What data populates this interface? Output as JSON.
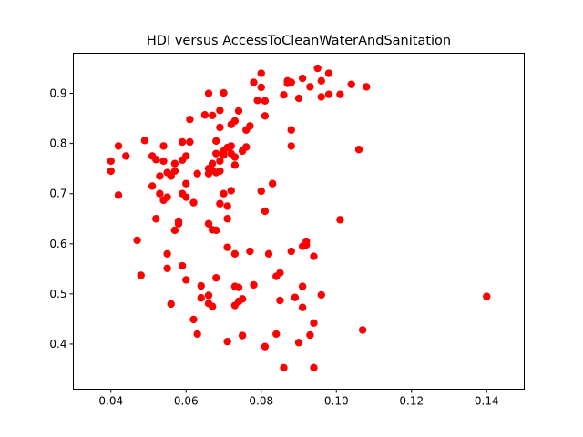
{
  "chart_data": {
    "type": "scatter",
    "title": "HDI versus AccessToCleanWaterAndSanitation",
    "xlabel": "",
    "ylabel": "",
    "xlim": [
      0.03,
      0.15
    ],
    "ylim": [
      0.31,
      0.98
    ],
    "xticks": [
      0.04,
      0.06,
      0.08,
      0.1,
      0.12,
      0.14
    ],
    "xtick_labels": [
      "0.04",
      "0.06",
      "0.08",
      "0.10",
      "0.12",
      "0.14"
    ],
    "yticks": [
      0.4,
      0.5,
      0.6,
      0.7,
      0.8,
      0.9
    ],
    "ytick_labels": [
      "0.4",
      "0.5",
      "0.6",
      "0.7",
      "0.8",
      "0.9"
    ],
    "grid": false,
    "legend": "none",
    "marker_color": "#ff0000",
    "points": [
      [
        0.04,
        0.765
      ],
      [
        0.04,
        0.745
      ],
      [
        0.042,
        0.795
      ],
      [
        0.042,
        0.697
      ],
      [
        0.044,
        0.775
      ],
      [
        0.047,
        0.607
      ],
      [
        0.048,
        0.537
      ],
      [
        0.049,
        0.806
      ],
      [
        0.051,
        0.715
      ],
      [
        0.051,
        0.775
      ],
      [
        0.052,
        0.65
      ],
      [
        0.052,
        0.768
      ],
      [
        0.053,
        0.7
      ],
      [
        0.053,
        0.735
      ],
      [
        0.054,
        0.795
      ],
      [
        0.054,
        0.765
      ],
      [
        0.054,
        0.687
      ],
      [
        0.055,
        0.742
      ],
      [
        0.055,
        0.693
      ],
      [
        0.055,
        0.58
      ],
      [
        0.055,
        0.551
      ],
      [
        0.056,
        0.48
      ],
      [
        0.056,
        0.735
      ],
      [
        0.057,
        0.627
      ],
      [
        0.057,
        0.745
      ],
      [
        0.057,
        0.76
      ],
      [
        0.058,
        0.645
      ],
      [
        0.058,
        0.64
      ],
      [
        0.059,
        0.556
      ],
      [
        0.059,
        0.767
      ],
      [
        0.059,
        0.7
      ],
      [
        0.059,
        0.803
      ],
      [
        0.06,
        0.775
      ],
      [
        0.06,
        0.72
      ],
      [
        0.06,
        0.693
      ],
      [
        0.06,
        0.528
      ],
      [
        0.061,
        0.848
      ],
      [
        0.061,
        0.803
      ],
      [
        0.062,
        0.682
      ],
      [
        0.062,
        0.449
      ],
      [
        0.063,
        0.42
      ],
      [
        0.063,
        0.74
      ],
      [
        0.064,
        0.492
      ],
      [
        0.064,
        0.516
      ],
      [
        0.065,
        0.857
      ],
      [
        0.066,
        0.9
      ],
      [
        0.066,
        0.74
      ],
      [
        0.066,
        0.75
      ],
      [
        0.066,
        0.64
      ],
      [
        0.066,
        0.497
      ],
      [
        0.066,
        0.481
      ],
      [
        0.067,
        0.856
      ],
      [
        0.067,
        0.746
      ],
      [
        0.067,
        0.76
      ],
      [
        0.067,
        0.628
      ],
      [
        0.067,
        0.475
      ],
      [
        0.068,
        0.805
      ],
      [
        0.068,
        0.78
      ],
      [
        0.068,
        0.532
      ],
      [
        0.068,
        0.742
      ],
      [
        0.068,
        0.627
      ],
      [
        0.069,
        0.832
      ],
      [
        0.069,
        0.866
      ],
      [
        0.069,
        0.765
      ],
      [
        0.069,
        0.68
      ],
      [
        0.069,
        0.745
      ],
      [
        0.07,
        0.901
      ],
      [
        0.07,
        0.785
      ],
      [
        0.07,
        0.7
      ],
      [
        0.07,
        0.777
      ],
      [
        0.071,
        0.792
      ],
      [
        0.071,
        0.675
      ],
      [
        0.071,
        0.65
      ],
      [
        0.071,
        0.593
      ],
      [
        0.071,
        0.405
      ],
      [
        0.072,
        0.838
      ],
      [
        0.072,
        0.795
      ],
      [
        0.072,
        0.706
      ],
      [
        0.072,
        0.78
      ],
      [
        0.073,
        0.845
      ],
      [
        0.073,
        0.773
      ],
      [
        0.073,
        0.757
      ],
      [
        0.073,
        0.58
      ],
      [
        0.073,
        0.515
      ],
      [
        0.073,
        0.477
      ],
      [
        0.074,
        0.865
      ],
      [
        0.074,
        0.513
      ],
      [
        0.074,
        0.485
      ],
      [
        0.075,
        0.417
      ],
      [
        0.075,
        0.785
      ],
      [
        0.075,
        0.49
      ],
      [
        0.076,
        0.793
      ],
      [
        0.076,
        0.827
      ],
      [
        0.077,
        0.835
      ],
      [
        0.077,
        0.585
      ],
      [
        0.078,
        0.922
      ],
      [
        0.078,
        0.518
      ],
      [
        0.079,
        0.886
      ],
      [
        0.08,
        0.94
      ],
      [
        0.08,
        0.912
      ],
      [
        0.08,
        0.705
      ],
      [
        0.081,
        0.885
      ],
      [
        0.081,
        0.855
      ],
      [
        0.081,
        0.665
      ],
      [
        0.081,
        0.395
      ],
      [
        0.082,
        0.58
      ],
      [
        0.083,
        0.72
      ],
      [
        0.084,
        0.535
      ],
      [
        0.084,
        0.42
      ],
      [
        0.085,
        0.542
      ],
      [
        0.085,
        0.487
      ],
      [
        0.086,
        0.897
      ],
      [
        0.086,
        0.353
      ],
      [
        0.087,
        0.925
      ],
      [
        0.087,
        0.92
      ],
      [
        0.088,
        0.922
      ],
      [
        0.088,
        0.795
      ],
      [
        0.088,
        0.585
      ],
      [
        0.088,
        0.827
      ],
      [
        0.089,
        0.493
      ],
      [
        0.09,
        0.89
      ],
      [
        0.09,
        0.403
      ],
      [
        0.091,
        0.93
      ],
      [
        0.091,
        0.515
      ],
      [
        0.091,
        0.595
      ],
      [
        0.091,
        0.473
      ],
      [
        0.092,
        0.598
      ],
      [
        0.092,
        0.605
      ],
      [
        0.093,
        0.418
      ],
      [
        0.093,
        0.913
      ],
      [
        0.094,
        0.575
      ],
      [
        0.094,
        0.442
      ],
      [
        0.094,
        0.353
      ],
      [
        0.095,
        0.95
      ],
      [
        0.096,
        0.925
      ],
      [
        0.096,
        0.893
      ],
      [
        0.096,
        0.498
      ],
      [
        0.098,
        0.94
      ],
      [
        0.098,
        0.898
      ],
      [
        0.101,
        0.898
      ],
      [
        0.101,
        0.648
      ],
      [
        0.104,
        0.918
      ],
      [
        0.106,
        0.788
      ],
      [
        0.107,
        0.428
      ],
      [
        0.108,
        0.913
      ],
      [
        0.14,
        0.495
      ]
    ]
  }
}
